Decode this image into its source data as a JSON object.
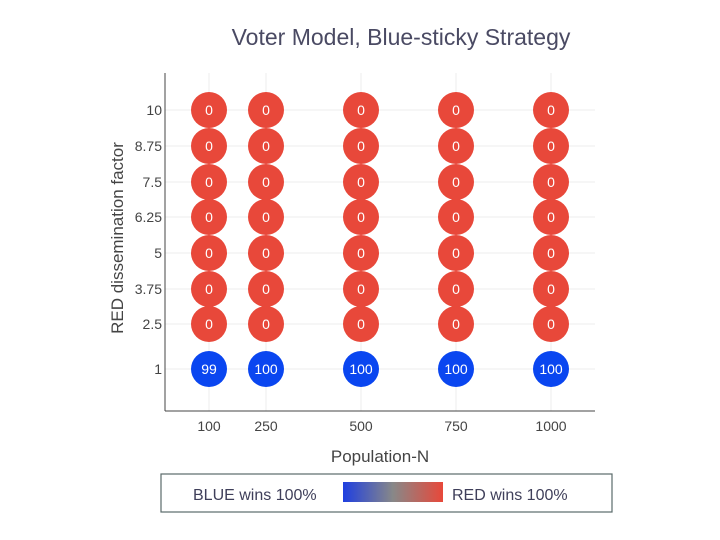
{
  "chart_data": {
    "type": "scatter",
    "title": "Voter Model, Blue-sticky Strategy",
    "xlabel": "Population-N",
    "ylabel": "RED dissemination factor",
    "x_ticks": [
      "100",
      "250",
      "500",
      "750",
      "1000"
    ],
    "y_ticks": [
      "1",
      "2.5",
      "3.75",
      "5",
      "6.25",
      "7.5",
      "8.75",
      "10"
    ],
    "grid": true,
    "colorscale": {
      "low": "#1f3fe0",
      "mid": "#888888",
      "high": "#e8483a"
    },
    "legend": {
      "position": "bottom",
      "left_label": "BLUE wins 100%",
      "right_label": "RED wins 100%"
    },
    "points": [
      {
        "x": 100,
        "y": 1,
        "value": 99,
        "label": "99",
        "color": "#0a46f0"
      },
      {
        "x": 250,
        "y": 1,
        "value": 100,
        "label": "100",
        "color": "#0a46f0"
      },
      {
        "x": 500,
        "y": 1,
        "value": 100,
        "label": "100",
        "color": "#0a46f0"
      },
      {
        "x": 750,
        "y": 1,
        "value": 100,
        "label": "100",
        "color": "#0a46f0"
      },
      {
        "x": 1000,
        "y": 1,
        "value": 100,
        "label": "100",
        "color": "#0a46f0"
      },
      {
        "x": 100,
        "y": 2.5,
        "value": 0,
        "label": "0",
        "color": "#e8483a"
      },
      {
        "x": 250,
        "y": 2.5,
        "value": 0,
        "label": "0",
        "color": "#e8483a"
      },
      {
        "x": 500,
        "y": 2.5,
        "value": 0,
        "label": "0",
        "color": "#e8483a"
      },
      {
        "x": 750,
        "y": 2.5,
        "value": 0,
        "label": "0",
        "color": "#e8483a"
      },
      {
        "x": 1000,
        "y": 2.5,
        "value": 0,
        "label": "0",
        "color": "#e8483a"
      },
      {
        "x": 100,
        "y": 3.75,
        "value": 0,
        "label": "0",
        "color": "#e8483a"
      },
      {
        "x": 250,
        "y": 3.75,
        "value": 0,
        "label": "0",
        "color": "#e8483a"
      },
      {
        "x": 500,
        "y": 3.75,
        "value": 0,
        "label": "0",
        "color": "#e8483a"
      },
      {
        "x": 750,
        "y": 3.75,
        "value": 0,
        "label": "0",
        "color": "#e8483a"
      },
      {
        "x": 1000,
        "y": 3.75,
        "value": 0,
        "label": "0",
        "color": "#e8483a"
      },
      {
        "x": 100,
        "y": 5,
        "value": 0,
        "label": "0",
        "color": "#e8483a"
      },
      {
        "x": 250,
        "y": 5,
        "value": 0,
        "label": "0",
        "color": "#e8483a"
      },
      {
        "x": 500,
        "y": 5,
        "value": 0,
        "label": "0",
        "color": "#e8483a"
      },
      {
        "x": 750,
        "y": 5,
        "value": 0,
        "label": "0",
        "color": "#e8483a"
      },
      {
        "x": 1000,
        "y": 5,
        "value": 0,
        "label": "0",
        "color": "#e8483a"
      },
      {
        "x": 100,
        "y": 6.25,
        "value": 0,
        "label": "0",
        "color": "#e8483a"
      },
      {
        "x": 250,
        "y": 6.25,
        "value": 0,
        "label": "0",
        "color": "#e8483a"
      },
      {
        "x": 500,
        "y": 6.25,
        "value": 0,
        "label": "0",
        "color": "#e8483a"
      },
      {
        "x": 750,
        "y": 6.25,
        "value": 0,
        "label": "0",
        "color": "#e8483a"
      },
      {
        "x": 1000,
        "y": 6.25,
        "value": 0,
        "label": "0",
        "color": "#e8483a"
      },
      {
        "x": 100,
        "y": 7.5,
        "value": 0,
        "label": "0",
        "color": "#e8483a"
      },
      {
        "x": 250,
        "y": 7.5,
        "value": 0,
        "label": "0",
        "color": "#e8483a"
      },
      {
        "x": 500,
        "y": 7.5,
        "value": 0,
        "label": "0",
        "color": "#e8483a"
      },
      {
        "x": 750,
        "y": 7.5,
        "value": 0,
        "label": "0",
        "color": "#e8483a"
      },
      {
        "x": 1000,
        "y": 7.5,
        "value": 0,
        "label": "0",
        "color": "#e8483a"
      },
      {
        "x": 100,
        "y": 8.75,
        "value": 0,
        "label": "0",
        "color": "#e8483a"
      },
      {
        "x": 250,
        "y": 8.75,
        "value": 0,
        "label": "0",
        "color": "#e8483a"
      },
      {
        "x": 500,
        "y": 8.75,
        "value": 0,
        "label": "0",
        "color": "#e8483a"
      },
      {
        "x": 750,
        "y": 8.75,
        "value": 0,
        "label": "0",
        "color": "#e8483a"
      },
      {
        "x": 1000,
        "y": 8.75,
        "value": 0,
        "label": "0",
        "color": "#e8483a"
      },
      {
        "x": 100,
        "y": 10,
        "value": 0,
        "label": "0",
        "color": "#e8483a"
      },
      {
        "x": 250,
        "y": 10,
        "value": 0,
        "label": "0",
        "color": "#e8483a"
      },
      {
        "x": 500,
        "y": 10,
        "value": 0,
        "label": "0",
        "color": "#e8483a"
      },
      {
        "x": 750,
        "y": 10,
        "value": 0,
        "label": "0",
        "color": "#e8483a"
      },
      {
        "x": 1000,
        "y": 10,
        "value": 0,
        "label": "0",
        "color": "#e8483a"
      }
    ]
  }
}
